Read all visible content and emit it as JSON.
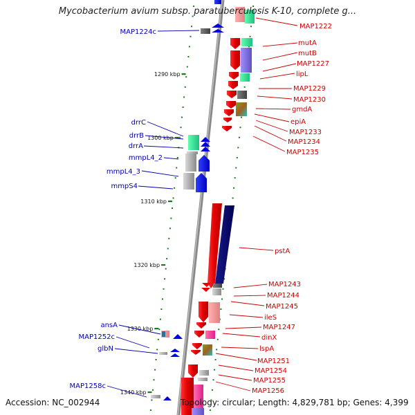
{
  "title": "Mycobacterium avium subsp. paratuberculosis K-10, complete g...",
  "accession": "Accession: NC_002944",
  "topology": "Topology: circular; Length: 4,829,781 bp; Genes: 4,399",
  "colors": {
    "backbone": "#8a8a8a",
    "forward": "#e80000",
    "reverse": "#0000e0",
    "label_left": "#0000b0",
    "label_right": "#cc0000",
    "gc_dots": "#1a7a1a"
  },
  "ticks": [
    {
      "kbp": 1290,
      "label": "1290 kbp"
    },
    {
      "kbp": 1300,
      "label": "1300 kbp"
    },
    {
      "kbp": 1310,
      "label": "1310 kbp"
    },
    {
      "kbp": 1320,
      "label": "1320 kbp"
    },
    {
      "kbp": 1330,
      "label": "1330 kbp"
    },
    {
      "kbp": 1340,
      "label": "1340 kbp"
    }
  ],
  "left_labels": [
    "MAP1224c",
    "drrC",
    "drrB",
    "drrA",
    "mmpL4_2",
    "mmpL4_3",
    "mmpS4",
    "ansA",
    "MAP1252c",
    "glbN",
    "MAP1258c"
  ],
  "right_labels": [
    "MAP1222",
    "mutA",
    "mutB",
    "MAP1227",
    "lipL",
    "MAP1229",
    "MAP1230",
    "gmdA",
    "epiA",
    "MAP1233",
    "MAP1234",
    "MAP1235",
    "pstA",
    "MAP1243",
    "MAP1244",
    "MAP1245",
    "ileS",
    "MAP1247",
    "dinX",
    "lspA",
    "MAP1251",
    "MAP1254",
    "MAP1255",
    "MAP1256"
  ]
}
